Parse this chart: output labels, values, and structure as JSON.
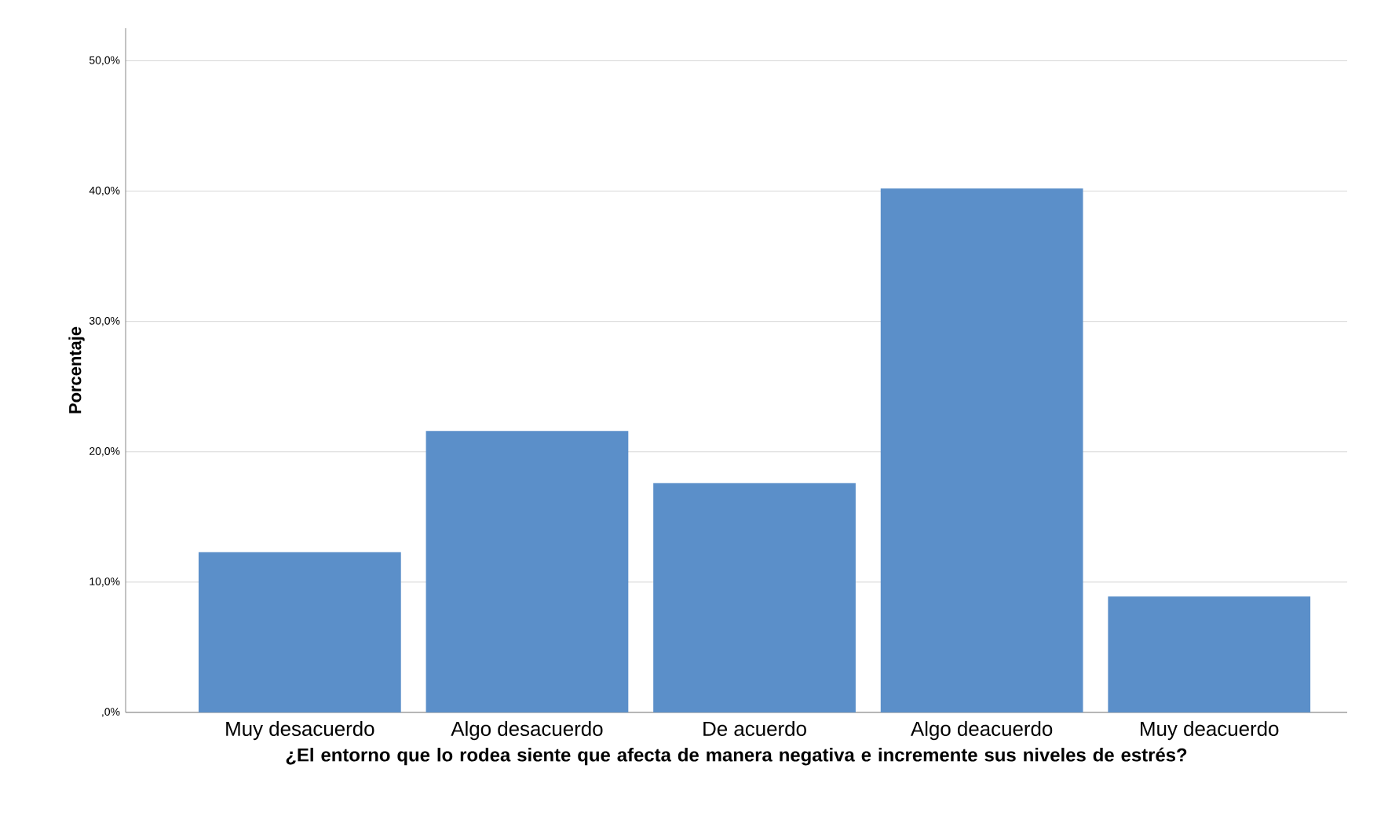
{
  "chart_data": {
    "type": "bar",
    "xlabel": "¿El entorno que lo rodea siente que afecta de manera negativa e incremente sus niveles de estrés?",
    "ylabel": "Porcentaje",
    "categories": [
      "Muy desacuerdo",
      "Algo desacuerdo",
      "De acuerdo",
      "Algo deacuerdo",
      "Muy deacuerdo"
    ],
    "values": [
      12.3,
      21.6,
      17.6,
      40.2,
      8.9
    ],
    "color": "#5b8fc9",
    "ylim": [
      0,
      52.5
    ],
    "yticks": [
      {
        "value": 0,
        "label": ",0%"
      },
      {
        "value": 10,
        "label": "10,0%"
      },
      {
        "value": 20,
        "label": "20,0%"
      },
      {
        "value": 30,
        "label": "30,0%"
      },
      {
        "value": 40,
        "label": "40,0%"
      },
      {
        "value": 50,
        "label": "50,0%"
      }
    ],
    "grid": "y"
  }
}
